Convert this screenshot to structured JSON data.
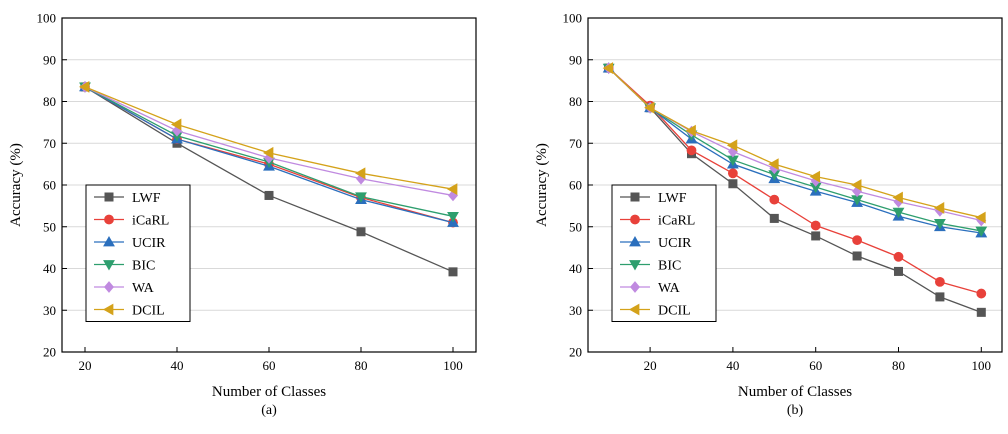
{
  "chart_data": [
    {
      "type": "line",
      "panel_label": "(a)",
      "xlabel": "Number of Classes",
      "ylabel": "Accuracy (%)",
      "xlim": [
        15,
        105
      ],
      "ylim": [
        20,
        100
      ],
      "xticks": [
        20,
        40,
        60,
        80,
        100
      ],
      "yticks": [
        20,
        30,
        40,
        50,
        60,
        70,
        80,
        90,
        100
      ],
      "grid": "horizontal",
      "legend_position": "bottom-left",
      "x": [
        20,
        40,
        60,
        80,
        100
      ],
      "series": [
        {
          "name": "LWF",
          "color": "#555555",
          "marker": "square",
          "values": [
            83.5,
            70.0,
            57.5,
            48.8,
            39.2
          ]
        },
        {
          "name": "iCaRL",
          "color": "#e8413a",
          "marker": "circle",
          "values": [
            83.5,
            71.0,
            65.0,
            57.0,
            51.0
          ]
        },
        {
          "name": "UCIR",
          "color": "#2b6fbd",
          "marker": "triangle-up",
          "values": [
            83.5,
            71.0,
            64.5,
            56.5,
            51.0
          ]
        },
        {
          "name": "BIC",
          "color": "#2e9e6e",
          "marker": "triangle-down",
          "values": [
            83.5,
            71.8,
            65.5,
            57.2,
            52.5
          ]
        },
        {
          "name": "WA",
          "color": "#c08ae0",
          "marker": "diamond",
          "values": [
            83.5,
            73.0,
            66.5,
            61.5,
            57.5
          ]
        },
        {
          "name": "DCIL",
          "color": "#d4a21a",
          "marker": "triangle-left",
          "values": [
            83.5,
            74.5,
            67.7,
            62.8,
            59.0
          ]
        }
      ]
    },
    {
      "type": "line",
      "panel_label": "(b)",
      "xlabel": "Number of Classes",
      "ylabel": "Accuracy (%)",
      "xlim": [
        5,
        105
      ],
      "ylim": [
        20,
        100
      ],
      "xticks": [
        20,
        40,
        60,
        80,
        100
      ],
      "yticks": [
        20,
        30,
        40,
        50,
        60,
        70,
        80,
        90,
        100
      ],
      "grid": "horizontal",
      "legend_position": "bottom-left",
      "x": [
        10,
        20,
        30,
        40,
        50,
        60,
        70,
        80,
        90,
        100
      ],
      "series": [
        {
          "name": "LWF",
          "color": "#555555",
          "marker": "square",
          "values": [
            88.0,
            78.5,
            67.5,
            60.3,
            52.0,
            47.8,
            43.0,
            39.3,
            33.2,
            29.5
          ]
        },
        {
          "name": "iCaRL",
          "color": "#e8413a",
          "marker": "circle",
          "values": [
            88.0,
            79.0,
            68.3,
            62.8,
            56.5,
            50.3,
            46.8,
            42.8,
            36.8,
            34.0
          ]
        },
        {
          "name": "UCIR",
          "color": "#2b6fbd",
          "marker": "triangle-up",
          "values": [
            88.0,
            78.5,
            71.0,
            65.0,
            61.5,
            58.5,
            55.8,
            52.5,
            50.0,
            48.5
          ]
        },
        {
          "name": "BIC",
          "color": "#2e9e6e",
          "marker": "triangle-down",
          "values": [
            88.0,
            78.5,
            72.0,
            66.0,
            62.5,
            59.5,
            56.5,
            53.5,
            50.8,
            49.0
          ]
        },
        {
          "name": "WA",
          "color": "#c08ae0",
          "marker": "diamond",
          "values": [
            88.0,
            78.5,
            72.8,
            68.0,
            64.0,
            61.0,
            58.5,
            56.0,
            53.8,
            51.5
          ]
        },
        {
          "name": "DCIL",
          "color": "#d4a21a",
          "marker": "triangle-left",
          "values": [
            88.0,
            78.5,
            73.0,
            69.5,
            65.0,
            62.0,
            60.0,
            57.0,
            54.5,
            52.2
          ]
        }
      ]
    }
  ]
}
